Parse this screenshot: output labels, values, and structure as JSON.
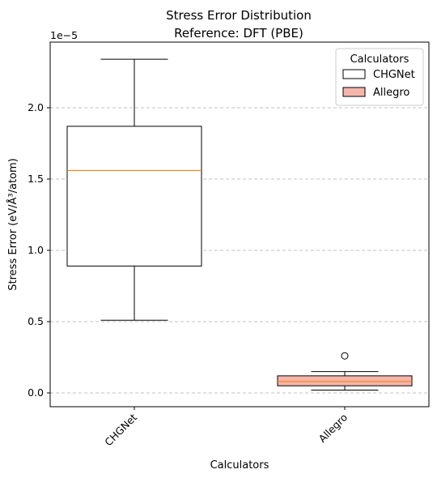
{
  "chart_data": {
    "type": "boxplot",
    "title": [
      "Stress Error Distribution",
      "Reference: DFT (PBE)"
    ],
    "xlabel": "Calculators",
    "ylabel": "Stress Error (eV/Å³/atom)",
    "y_offset_label": "1e−5",
    "y_scale_factor": 1e-05,
    "ylim": [
      -0.1,
      2.45
    ],
    "yticks": [
      0.0,
      0.5,
      1.0,
      1.5,
      2.0
    ],
    "ytick_labels": [
      "0.0",
      "0.5",
      "1.0",
      "1.5",
      "2.0"
    ],
    "grid": "y-dashed",
    "legend": {
      "title": "Calculators",
      "placement": "top-right",
      "entries": [
        "CHGNet",
        "Allegro"
      ]
    },
    "categories": [
      "CHGNet",
      "Allegro"
    ],
    "series": [
      {
        "name": "CHGNet",
        "color": "#ffffff",
        "whisker_low": 0.51,
        "q1": 0.89,
        "median": 1.56,
        "q3": 1.87,
        "whisker_high": 2.34,
        "outliers": []
      },
      {
        "name": "Allegro",
        "color": "#f4b6ab",
        "whisker_low": 0.02,
        "q1": 0.05,
        "median": 0.08,
        "q3": 0.12,
        "whisker_high": 0.15,
        "outliers": [
          0.26
        ]
      }
    ],
    "median_color": "#ff7f0e"
  }
}
